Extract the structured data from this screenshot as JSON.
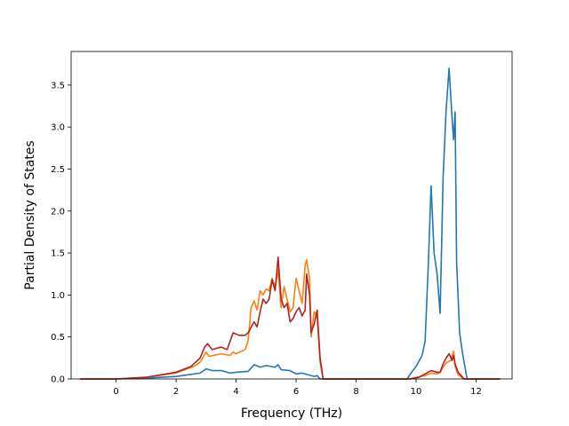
{
  "chart_data": {
    "type": "line",
    "title": "",
    "xlabel": "Frequency (THz)",
    "ylabel": "Partial Density of States",
    "xlim": [
      -1.5,
      13.2
    ],
    "ylim": [
      0,
      3.9
    ],
    "xticks": [
      0,
      2,
      4,
      6,
      8,
      10,
      12
    ],
    "xtick_labels": [
      "0",
      "2",
      "4",
      "6",
      "8",
      "10",
      "12"
    ],
    "yticks": [
      0,
      0.5,
      1,
      1.5,
      2,
      2.5,
      3,
      3.5
    ],
    "ytick_labels": [
      "0.0",
      "0.5",
      "1.0",
      "1.5",
      "2.0",
      "2.5",
      "3.0",
      "3.5"
    ],
    "grid": false,
    "legend": "none",
    "series": [
      {
        "color": "#1f77b4",
        "points": [
          [
            -1.2,
            0
          ],
          [
            0,
            0
          ],
          [
            1,
            0.01
          ],
          [
            2,
            0.03
          ],
          [
            2.8,
            0.07
          ],
          [
            3.0,
            0.12
          ],
          [
            3.2,
            0.1
          ],
          [
            3.5,
            0.1
          ],
          [
            3.8,
            0.07
          ],
          [
            4.0,
            0.08
          ],
          [
            4.4,
            0.09
          ],
          [
            4.6,
            0.17
          ],
          [
            4.8,
            0.14
          ],
          [
            5.0,
            0.16
          ],
          [
            5.3,
            0.14
          ],
          [
            5.4,
            0.17
          ],
          [
            5.5,
            0.11
          ],
          [
            5.8,
            0.1
          ],
          [
            6.0,
            0.06
          ],
          [
            6.2,
            0.07
          ],
          [
            6.4,
            0.05
          ],
          [
            6.6,
            0.03
          ],
          [
            6.7,
            0.04
          ],
          [
            6.8,
            0.0
          ],
          [
            7.0,
            0
          ],
          [
            9.7,
            0
          ],
          [
            9.85,
            0.08
          ],
          [
            10.0,
            0.15
          ],
          [
            10.2,
            0.28
          ],
          [
            10.3,
            0.45
          ],
          [
            10.4,
            1.3
          ],
          [
            10.5,
            2.3
          ],
          [
            10.6,
            1.5
          ],
          [
            10.7,
            1.25
          ],
          [
            10.8,
            0.78
          ],
          [
            10.9,
            2.4
          ],
          [
            11.0,
            3.2
          ],
          [
            11.1,
            3.7
          ],
          [
            11.2,
            3.1
          ],
          [
            11.25,
            2.85
          ],
          [
            11.3,
            3.18
          ],
          [
            11.35,
            1.4
          ],
          [
            11.45,
            0.55
          ],
          [
            11.55,
            0.3
          ],
          [
            11.7,
            0.0
          ],
          [
            12.8,
            0
          ]
        ]
      },
      {
        "color": "#ff7f0e",
        "points": [
          [
            -1.2,
            0
          ],
          [
            0,
            0
          ],
          [
            1,
            0.02
          ],
          [
            2,
            0.07
          ],
          [
            2.6,
            0.15
          ],
          [
            2.8,
            0.2
          ],
          [
            3.0,
            0.32
          ],
          [
            3.1,
            0.27
          ],
          [
            3.5,
            0.3
          ],
          [
            3.8,
            0.28
          ],
          [
            3.9,
            0.32
          ],
          [
            4.0,
            0.3
          ],
          [
            4.3,
            0.35
          ],
          [
            4.4,
            0.45
          ],
          [
            4.5,
            0.85
          ],
          [
            4.6,
            0.93
          ],
          [
            4.7,
            0.82
          ],
          [
            4.8,
            1.05
          ],
          [
            4.9,
            1.0
          ],
          [
            5.0,
            1.07
          ],
          [
            5.1,
            1.05
          ],
          [
            5.2,
            1.2
          ],
          [
            5.3,
            1.1
          ],
          [
            5.4,
            1.3
          ],
          [
            5.5,
            0.85
          ],
          [
            5.6,
            1.1
          ],
          [
            5.7,
            0.95
          ],
          [
            5.8,
            0.8
          ],
          [
            5.9,
            0.85
          ],
          [
            6.0,
            1.2
          ],
          [
            6.1,
            1.05
          ],
          [
            6.2,
            0.9
          ],
          [
            6.3,
            1.35
          ],
          [
            6.35,
            1.42
          ],
          [
            6.45,
            1.2
          ],
          [
            6.5,
            0.5
          ],
          [
            6.6,
            0.8
          ],
          [
            6.7,
            0.75
          ],
          [
            6.8,
            0.2
          ],
          [
            6.9,
            0.0
          ],
          [
            7.0,
            0
          ],
          [
            9.8,
            0
          ],
          [
            10.0,
            0.02
          ],
          [
            10.3,
            0.04
          ],
          [
            10.5,
            0.07
          ],
          [
            10.7,
            0.06
          ],
          [
            10.8,
            0.08
          ],
          [
            10.9,
            0.14
          ],
          [
            11.0,
            0.19
          ],
          [
            11.15,
            0.22
          ],
          [
            11.25,
            0.33
          ],
          [
            11.3,
            0.15
          ],
          [
            11.4,
            0.05
          ],
          [
            11.6,
            0.0
          ],
          [
            12.8,
            0
          ]
        ]
      },
      {
        "color": "#b22222",
        "points": [
          [
            -1.2,
            0
          ],
          [
            0,
            0
          ],
          [
            1,
            0.02
          ],
          [
            2,
            0.08
          ],
          [
            2.5,
            0.15
          ],
          [
            2.8,
            0.25
          ],
          [
            2.95,
            0.38
          ],
          [
            3.05,
            0.42
          ],
          [
            3.2,
            0.35
          ],
          [
            3.5,
            0.38
          ],
          [
            3.7,
            0.35
          ],
          [
            3.9,
            0.55
          ],
          [
            4.1,
            0.52
          ],
          [
            4.3,
            0.52
          ],
          [
            4.4,
            0.55
          ],
          [
            4.6,
            0.68
          ],
          [
            4.7,
            0.62
          ],
          [
            4.8,
            0.8
          ],
          [
            4.9,
            0.95
          ],
          [
            5.0,
            0.9
          ],
          [
            5.1,
            0.95
          ],
          [
            5.2,
            1.18
          ],
          [
            5.3,
            1.05
          ],
          [
            5.4,
            1.45
          ],
          [
            5.5,
            0.95
          ],
          [
            5.6,
            0.85
          ],
          [
            5.7,
            0.9
          ],
          [
            5.8,
            0.68
          ],
          [
            5.9,
            0.72
          ],
          [
            6.0,
            0.8
          ],
          [
            6.1,
            0.85
          ],
          [
            6.2,
            0.75
          ],
          [
            6.3,
            0.82
          ],
          [
            6.35,
            1.25
          ],
          [
            6.45,
            1.0
          ],
          [
            6.5,
            0.55
          ],
          [
            6.6,
            0.65
          ],
          [
            6.7,
            0.82
          ],
          [
            6.8,
            0.25
          ],
          [
            6.9,
            0.0
          ],
          [
            7.0,
            0
          ],
          [
            9.8,
            0
          ],
          [
            10.1,
            0.02
          ],
          [
            10.3,
            0.06
          ],
          [
            10.5,
            0.1
          ],
          [
            10.7,
            0.08
          ],
          [
            10.8,
            0.08
          ],
          [
            10.9,
            0.18
          ],
          [
            11.0,
            0.25
          ],
          [
            11.1,
            0.3
          ],
          [
            11.2,
            0.22
          ],
          [
            11.25,
            0.28
          ],
          [
            11.3,
            0.18
          ],
          [
            11.4,
            0.08
          ],
          [
            11.6,
            0.0
          ],
          [
            12.8,
            0
          ]
        ]
      }
    ]
  }
}
